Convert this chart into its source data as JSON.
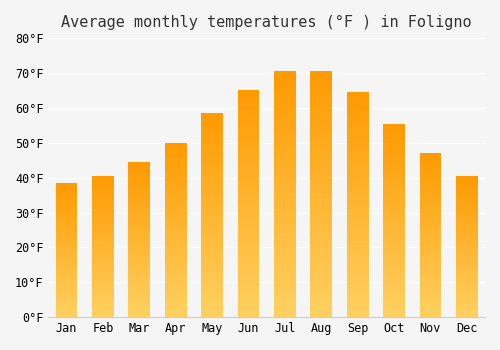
{
  "title": "Average monthly temperatures (°F ) in Foligno",
  "months": [
    "Jan",
    "Feb",
    "Mar",
    "Apr",
    "May",
    "Jun",
    "Jul",
    "Aug",
    "Sep",
    "Oct",
    "Nov",
    "Dec"
  ],
  "values": [
    38.5,
    40.5,
    44.5,
    50.0,
    58.5,
    65.0,
    70.5,
    70.5,
    64.5,
    55.5,
    47.0,
    40.5
  ],
  "bar_color_top": "#FFA500",
  "bar_color_bottom": "#FFD060",
  "ylim": [
    0,
    80
  ],
  "yticks": [
    0,
    10,
    20,
    30,
    40,
    50,
    60,
    70,
    80
  ],
  "background_color": "#f5f5f5",
  "grid_color": "#ffffff",
  "title_fontsize": 11,
  "tick_fontsize": 8.5,
  "font_family": "monospace"
}
